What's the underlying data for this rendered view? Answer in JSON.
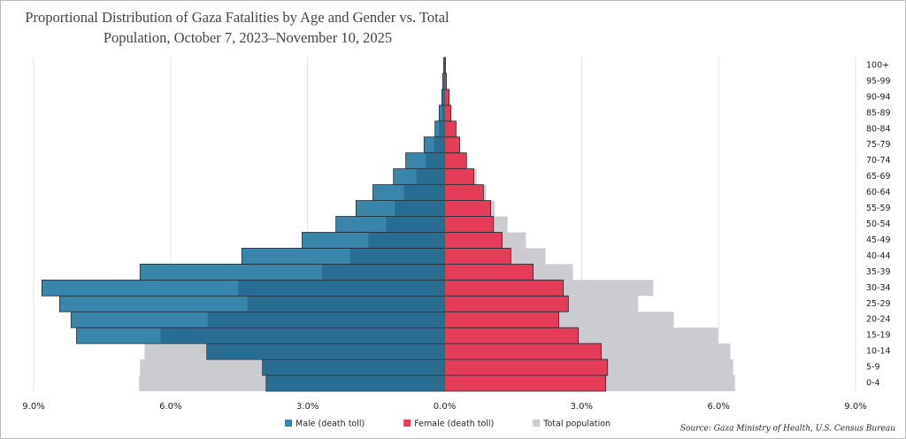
{
  "chart_data": {
    "type": "pyramid",
    "title": [
      "Proportional Distribution of Gaza Fatalities by Age and Gender vs. Total",
      "Population, October 7, 2023–November 10, 2025"
    ],
    "source": "Source: Gaza Ministry of Health, U.S. Census Bureau",
    "categories": [
      "0-4",
      "5-9",
      "10-14",
      "15-19",
      "20-24",
      "25-29",
      "30-34",
      "35-39",
      "40-44",
      "45-49",
      "50-54",
      "55-59",
      "60-64",
      "65-69",
      "70-74",
      "75-79",
      "80-84",
      "85-89",
      "90-94",
      "95-99",
      "100+"
    ],
    "series": [
      {
        "name": "Male (death toll)",
        "color": "#3a86ab",
        "overlap_color": "#2a6d92",
        "side": "left",
        "layer": "front",
        "values": [
          3.91,
          3.99,
          5.21,
          8.06,
          8.18,
          8.43,
          8.82,
          6.67,
          4.44,
          3.12,
          2.38,
          1.94,
          1.57,
          1.12,
          0.85,
          0.45,
          0.21,
          0.12,
          0.06,
          0.04,
          0.02
        ]
      },
      {
        "name": "Female (death toll)",
        "color": "#e63c57",
        "side": "right",
        "layer": "front",
        "values": [
          3.53,
          3.57,
          3.43,
          2.93,
          2.5,
          2.71,
          2.6,
          1.94,
          1.45,
          1.26,
          1.07,
          1.01,
          0.85,
          0.64,
          0.48,
          0.33,
          0.25,
          0.14,
          0.1,
          0.04,
          0.02
        ]
      },
      {
        "name": "Total population",
        "color": "#cbcccf",
        "side": "left",
        "layer": "back",
        "values": [
          6.69,
          6.67,
          6.57,
          6.22,
          5.19,
          4.32,
          4.52,
          2.69,
          2.07,
          1.67,
          1.28,
          1.09,
          0.89,
          0.62,
          0.41,
          0.23,
          0.12,
          0.06,
          0.04,
          0.02,
          0.01
        ]
      },
      {
        "color": "#cbcccf",
        "side": "right",
        "layer": "back",
        "values": [
          6.36,
          6.32,
          6.26,
          5.99,
          5.02,
          4.24,
          4.57,
          2.81,
          2.21,
          1.78,
          1.38,
          1.1,
          0.91,
          0.7,
          0.48,
          0.3,
          0.18,
          0.1,
          0.05,
          0.02,
          0.01
        ]
      }
    ],
    "xlim": [
      -9,
      9
    ],
    "xticks": [
      {
        "value": -9,
        "label": "9.0%"
      },
      {
        "value": -6,
        "label": "6.0%"
      },
      {
        "value": -3,
        "label": "3.0%"
      },
      {
        "value": 0,
        "label": "0.0%"
      },
      {
        "value": 3,
        "label": "3.0%"
      },
      {
        "value": 6,
        "label": "6.0%"
      },
      {
        "value": 9,
        "label": "9.0%"
      }
    ],
    "grid": true
  }
}
